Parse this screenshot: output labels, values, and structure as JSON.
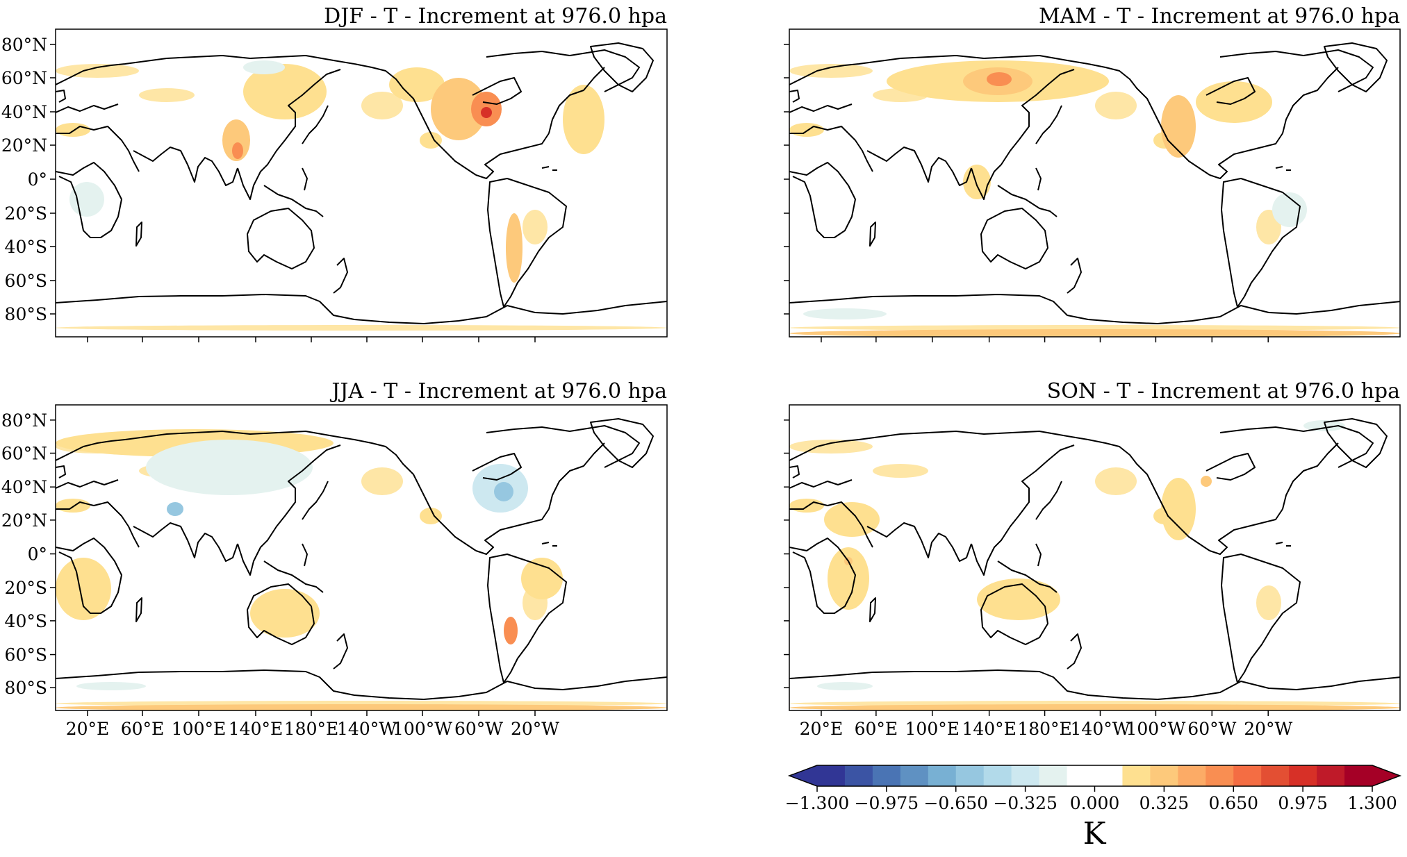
{
  "panels": [
    {
      "id": "djf",
      "title": "DJF - T - Increment at 976.0 hpa"
    },
    {
      "id": "mam",
      "title": "MAM - T - Increment at 976.0 hpa"
    },
    {
      "id": "jja",
      "title": "JJA - T - Increment at 976.0 hpa"
    },
    {
      "id": "son",
      "title": "SON - T - Increment at 976.0 hpa"
    }
  ],
  "lat_ticks": [
    "80°N",
    "60°N",
    "40°N",
    "20°N",
    "0°",
    "20°S",
    "40°S",
    "60°S",
    "80°S"
  ],
  "lon_ticks": [
    "20°E",
    "60°E",
    "100°E",
    "140°E",
    "180°E",
    "140°W",
    "100°W",
    "60°W",
    "20°W"
  ],
  "colorbar": {
    "ticks": [
      "−1.300",
      "−0.975",
      "−0.650",
      "−0.325",
      "0.000",
      "0.325",
      "0.650",
      "0.975",
      "1.300"
    ],
    "unit": "K",
    "colors": [
      "#313695",
      "#3b54a4",
      "#4a74b4",
      "#5f91c2",
      "#78b0d3",
      "#96c7e0",
      "#b2daea",
      "#cde8f0",
      "#e4f2ef",
      "#ffffff",
      "#ffffff",
      "#fee090",
      "#fdc97b",
      "#fcab66",
      "#f98e52",
      "#f46d43",
      "#e34f33",
      "#d73027",
      "#bf1a29",
      "#a50026"
    ]
  },
  "chart_data": {
    "type": "heatmap",
    "variable": "T increment",
    "level": "976.0 hpa",
    "unit": "K",
    "range": [
      -1.3,
      1.3
    ],
    "projection": "PlateCarree, central longitude 180",
    "panels": [
      "DJF",
      "MAM",
      "JJA",
      "SON"
    ],
    "notes": "Filled contours; mostly near 0 over ocean, positive (0.1–0.5 K) over land, DJF peak ~0.9 K over central North America, MAM peak ~0.6 K over Mongolia, JJA weak negative over eastern North America and India."
  }
}
